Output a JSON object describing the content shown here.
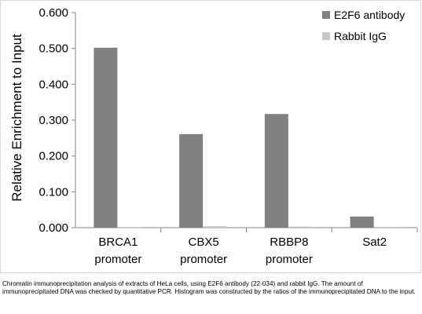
{
  "chart_data": {
    "type": "bar",
    "ylabel": "Relative Enrichment to Input",
    "xlabel": "",
    "ylim": [
      0,
      0.6
    ],
    "yticks": [
      "0.000",
      "0.100",
      "0.200",
      "0.300",
      "0.400",
      "0.500",
      "0.600"
    ],
    "categories": [
      [
        "BRCA1",
        "promoter"
      ],
      [
        "CBX5",
        "promoter"
      ],
      [
        "RBBP8",
        "promoter"
      ],
      [
        "Sat2"
      ]
    ],
    "series": [
      {
        "name": "E2F6 antibody",
        "color": "#808080",
        "values": [
          0.502,
          0.261,
          0.317,
          0.031
        ]
      },
      {
        "name": "Rabbit IgG",
        "color": "#c8c8c8",
        "values": [
          0.001,
          0.004,
          0.003,
          0.002
        ]
      }
    ],
    "legend_position": "top-right",
    "grid": false
  },
  "caption": "Chromatin immunoprecipitation analysis of extracts of HeLa cells, using E2F6 antibody (22-034) and rabbit IgG. The amount of immunoprecipitated DNA was checked by quantitative PCR. Histogram was constructed by the ratios of the immunoprecipitated DNA to the input."
}
